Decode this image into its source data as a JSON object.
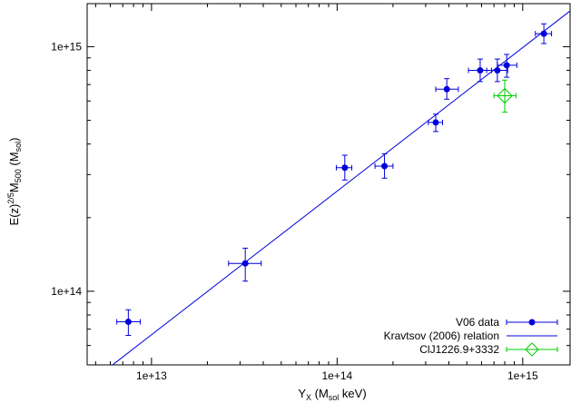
{
  "chart_data": {
    "type": "scatter",
    "x_scale": "log",
    "y_scale": "log",
    "xlim": [
      4500000000000.0,
      1800000000000000.0
    ],
    "ylim": [
      50000000000000.0,
      1500000000000000.0
    ],
    "x_ticks": [
      10000000000000.0,
      100000000000000.0,
      1000000000000000.0
    ],
    "x_tick_labels": [
      "1e+13",
      "1e+14",
      "1e+15"
    ],
    "y_ticks": [
      100000000000000.0,
      1000000000000000.0
    ],
    "y_tick_labels": [
      "1e+14",
      "1e+15"
    ],
    "xlabel": {
      "base": "Y",
      "sub": "X",
      "unit_open": " (M",
      "unit_sub": "sol",
      "unit_close": " keV)"
    },
    "ylabel": {
      "p1": "E(z)",
      "sup": "2/5",
      "p2": "M",
      "sub": "500",
      "p3": " (M",
      "sub2": "sol",
      "p4": ")"
    },
    "grid": false,
    "legend_position": "bottom-right",
    "series": [
      {
        "name": "V06 data",
        "color": "#0000dd",
        "marker": "circle",
        "points": [
          {
            "x": 7500000000000.0,
            "y": 75000000000000.0,
            "xlo": 6500000000000.0,
            "xhi": 8700000000000.0,
            "ylo": 66000000000000.0,
            "yhi": 84000000000000.0
          },
          {
            "x": 32000000000000.0,
            "y": 130000000000000.0,
            "xlo": 26000000000000.0,
            "xhi": 39000000000000.0,
            "ylo": 110000000000000.0,
            "yhi": 150000000000000.0
          },
          {
            "x": 110000000000000.0,
            "y": 320000000000000.0,
            "xlo": 99000000000000.0,
            "xhi": 120000000000000.0,
            "ylo": 285000000000000.0,
            "yhi": 360000000000000.0
          },
          {
            "x": 180000000000000.0,
            "y": 325000000000000.0,
            "xlo": 160000000000000.0,
            "xhi": 200000000000000.0,
            "ylo": 290000000000000.0,
            "yhi": 365000000000000.0
          },
          {
            "x": 340000000000000.0,
            "y": 490000000000000.0,
            "xlo": 310000000000000.0,
            "xhi": 370000000000000.0,
            "ylo": 450000000000000.0,
            "yhi": 530000000000000.0
          },
          {
            "x": 390000000000000.0,
            "y": 670000000000000.0,
            "xlo": 340000000000000.0,
            "xhi": 450000000000000.0,
            "ylo": 610000000000000.0,
            "yhi": 740000000000000.0
          },
          {
            "x": 590000000000000.0,
            "y": 800000000000000.0,
            "xlo": 510000000000000.0,
            "xhi": 680000000000000.0,
            "ylo": 720000000000000.0,
            "yhi": 890000000000000.0
          },
          {
            "x": 730000000000000.0,
            "y": 800000000000000.0,
            "xlo": 640000000000000.0,
            "xhi": 830000000000000.0,
            "ylo": 720000000000000.0,
            "yhi": 890000000000000.0
          },
          {
            "x": 820000000000000.0,
            "y": 840000000000000.0,
            "xlo": 730000000000000.0,
            "xhi": 930000000000000.0,
            "ylo": 750000000000000.0,
            "yhi": 930000000000000.0
          },
          {
            "x": 1300000000000000.0,
            "y": 1130000000000000.0,
            "xlo": 1170000000000000.0,
            "xhi": 1430000000000000.0,
            "ylo": 1030000000000000.0,
            "yhi": 1240000000000000.0
          }
        ]
      },
      {
        "name": "Kravtsov (2006) relation",
        "color": "#0000dd",
        "type": "line",
        "x": [
          5000000000000.0,
          1800000000000000.0
        ],
        "y": [
          44200000000000.0,
          1400000000000000.0
        ]
      },
      {
        "name": "ClJ1226.9+3332",
        "color": "#00cc00",
        "marker": "diamond",
        "points": [
          {
            "x": 800000000000000.0,
            "y": 630000000000000.0,
            "xlo": 700000000000000.0,
            "xhi": 920000000000000.0,
            "ylo": 540000000000000.0,
            "yhi": 730000000000000.0
          }
        ]
      }
    ]
  }
}
